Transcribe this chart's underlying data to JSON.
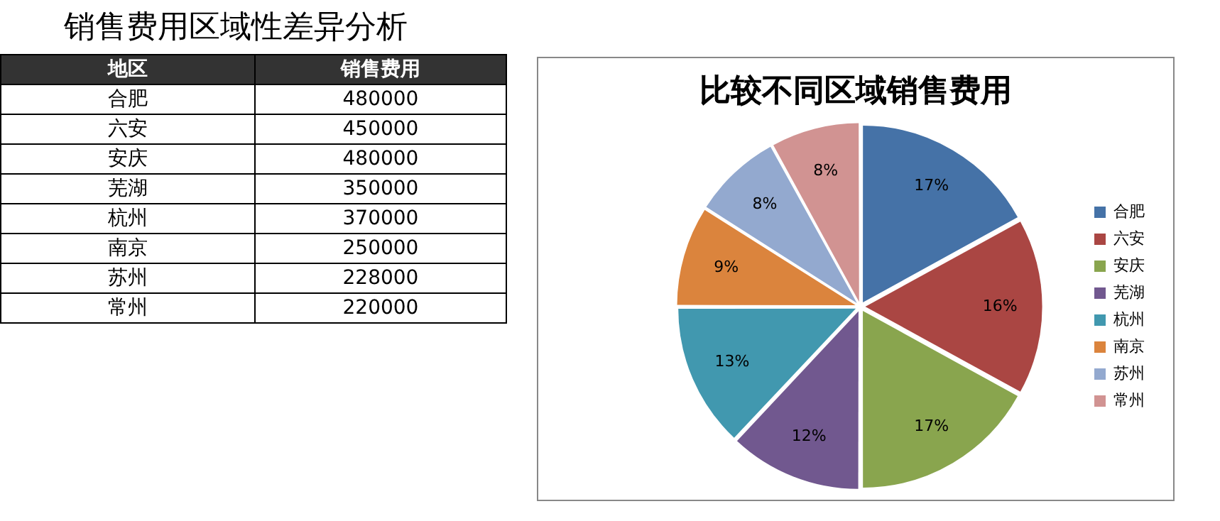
{
  "chart_data": [
    {
      "type": "other",
      "title": "销售费用区域性差异分析",
      "annotations": [
        "地区",
        "销售费用",
        "合肥",
        "480000",
        "六安",
        "450000",
        "安庆",
        "480000",
        "芜湖",
        "350000",
        "杭州",
        "370000",
        "南京",
        "250000",
        "苏州",
        "228000",
        "常州",
        "220000"
      ]
    },
    {
      "type": "pie",
      "title": "比较不同区域销售费用",
      "categories": [
        "合肥",
        "六安",
        "安庆",
        "芜湖",
        "杭州",
        "南京",
        "苏州",
        "常州"
      ],
      "values": [
        17,
        16,
        17,
        12,
        13,
        9,
        8,
        8
      ],
      "colors": [
        "#4572a7",
        "#aa4643",
        "#89a54e",
        "#71588f",
        "#4198af",
        "#db843d",
        "#93a9cf",
        "#d19392"
      ],
      "value_labels": [
        "17%",
        "16%",
        "17%",
        "12%",
        "13%",
        "9%",
        "8%",
        "8%"
      ],
      "legend": "right"
    }
  ]
}
